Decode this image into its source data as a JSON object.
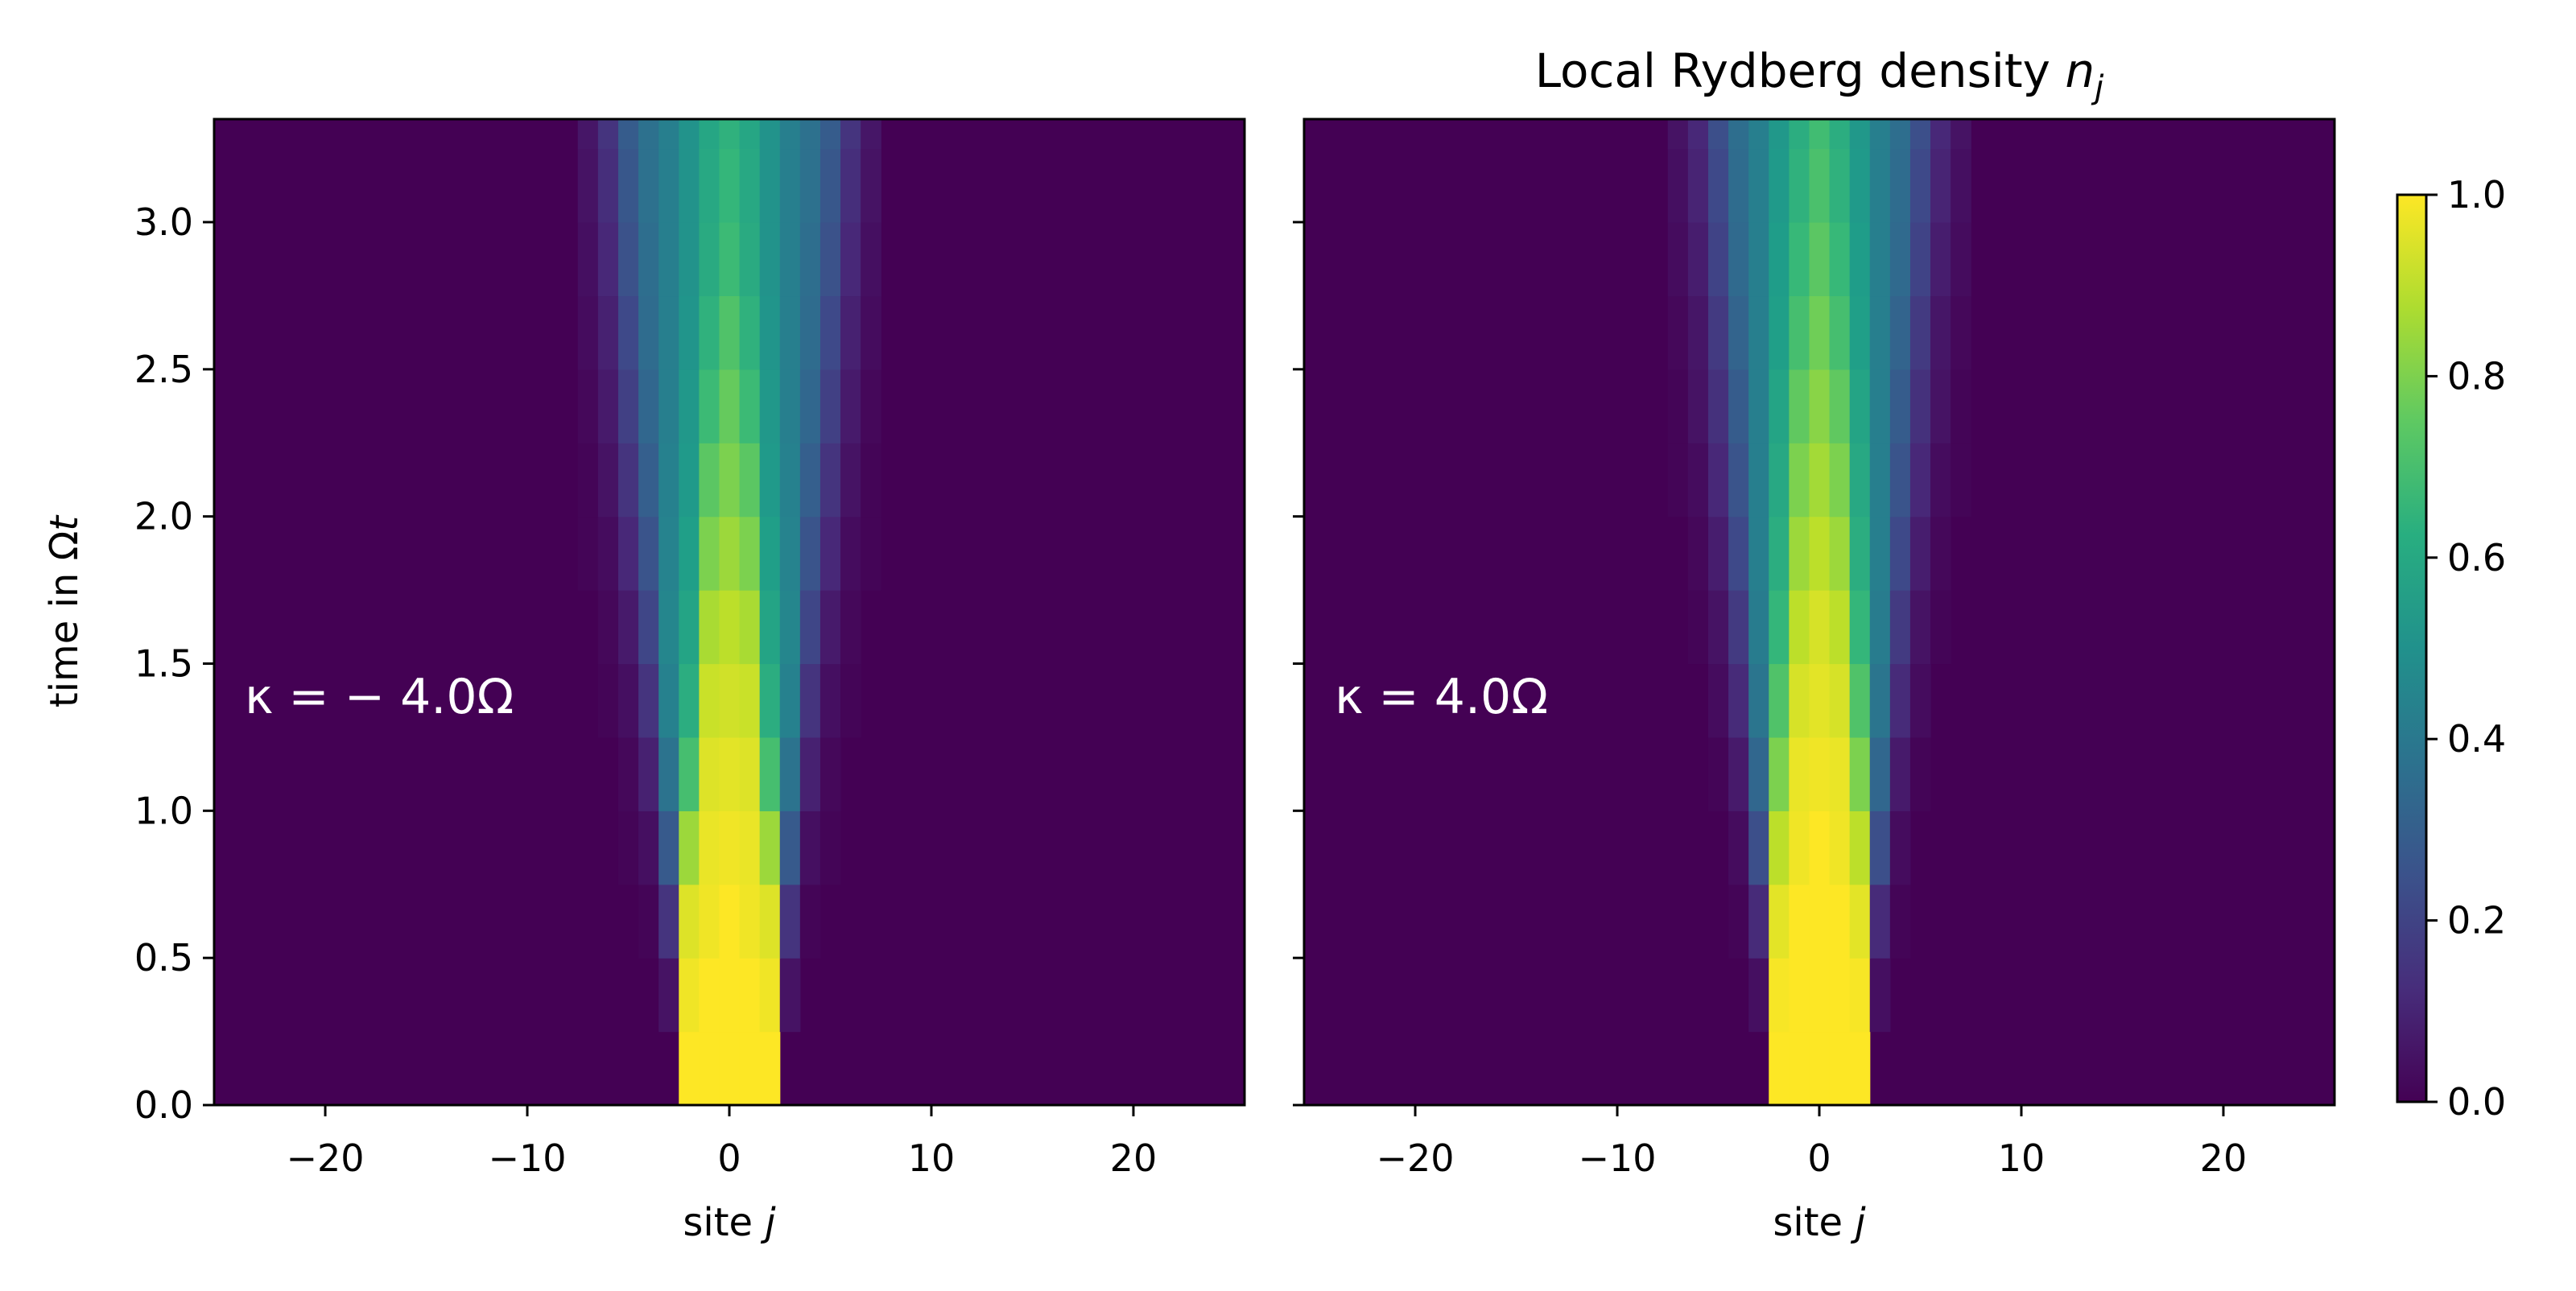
{
  "chart_data": {
    "type": "heatmap",
    "title": "Local Rydberg density n_j",
    "title_parts": {
      "main": "Local Rydberg density ",
      "var": "n",
      "sub": "j"
    },
    "xlabel_parts": {
      "main": "site ",
      "var": "j"
    },
    "ylabel_parts": {
      "main": "time in Ω",
      "var": "t"
    },
    "colormap": "viridis",
    "shared_y_axis": true,
    "xlim": [
      -25.5,
      25.5
    ],
    "ylim": [
      0,
      3.35
    ],
    "clim": [
      0,
      1
    ],
    "x_ticks": [
      -20,
      -10,
      0,
      10,
      20
    ],
    "x_tick_labels": [
      "−20",
      "−10",
      "0",
      "10",
      "20"
    ],
    "y_ticks": [
      0,
      0.5,
      1,
      1.5,
      2,
      2.5,
      3
    ],
    "y_tick_labels": [
      "0.0",
      "0.5",
      "1.0",
      "1.5",
      "2.0",
      "2.5",
      "3.0"
    ],
    "colorbar": {
      "ticks": [
        0,
        0.2,
        0.4,
        0.6,
        0.8,
        1
      ],
      "tick_labels": [
        "0.0",
        "0.2",
        "0.4",
        "0.6",
        "0.8",
        "1.0"
      ]
    },
    "initial_excited_sites": [
      -2,
      -1,
      0,
      1,
      2
    ],
    "sites": [
      -25,
      25
    ],
    "time_samples": [
      0,
      0.25,
      0.5,
      0.75,
      1.0,
      1.25,
      1.5,
      1.75,
      2.0,
      2.25,
      2.5,
      2.75,
      3.0,
      3.25,
      3.35
    ],
    "panels": [
      {
        "annotation": "κ = − 4.0Ω",
        "kappa": -4.0,
        "density_profile": {
          "sites": [
            0,
            1,
            2,
            3,
            4,
            5,
            6,
            7
          ],
          "rows": [
            [
              1.0,
              1.0,
              1.0,
              0.0,
              0.0,
              0.0,
              0.0,
              0.0
            ],
            [
              1.0,
              1.0,
              0.98,
              0.05,
              0.0,
              0.0,
              0.0,
              0.0
            ],
            [
              1.0,
              0.98,
              0.95,
              0.15,
              0.01,
              0.0,
              0.0,
              0.0
            ],
            [
              0.98,
              0.97,
              0.85,
              0.28,
              0.04,
              0.01,
              0.0,
              0.0
            ],
            [
              0.96,
              0.95,
              0.7,
              0.38,
              0.09,
              0.02,
              0.0,
              0.0
            ],
            [
              0.93,
              0.92,
              0.62,
              0.44,
              0.15,
              0.04,
              0.01,
              0.0
            ],
            [
              0.9,
              0.87,
              0.58,
              0.46,
              0.21,
              0.07,
              0.02,
              0.0
            ],
            [
              0.85,
              0.8,
              0.56,
              0.45,
              0.26,
              0.11,
              0.03,
              0.01
            ],
            [
              0.8,
              0.74,
              0.54,
              0.44,
              0.3,
              0.15,
              0.05,
              0.01
            ],
            [
              0.76,
              0.68,
              0.53,
              0.43,
              0.33,
              0.19,
              0.07,
              0.02
            ],
            [
              0.72,
              0.64,
              0.52,
              0.43,
              0.35,
              0.22,
              0.09,
              0.03
            ],
            [
              0.68,
              0.61,
              0.51,
              0.43,
              0.36,
              0.25,
              0.11,
              0.04
            ],
            [
              0.66,
              0.6,
              0.51,
              0.43,
              0.37,
              0.27,
              0.13,
              0.05
            ],
            [
              0.64,
              0.59,
              0.51,
              0.43,
              0.37,
              0.29,
              0.15,
              0.06
            ],
            [
              0.63,
              0.59,
              0.51,
              0.43,
              0.37,
              0.3,
              0.16,
              0.06
            ]
          ]
        }
      },
      {
        "annotation": "κ = 4.0Ω",
        "kappa": 4.0,
        "density_profile": {
          "sites": [
            0,
            1,
            2,
            3,
            4,
            5,
            6,
            7
          ],
          "rows": [
            [
              1.0,
              1.0,
              1.0,
              0.0,
              0.0,
              0.0,
              0.0,
              0.0
            ],
            [
              1.0,
              1.0,
              0.99,
              0.04,
              0.0,
              0.0,
              0.0,
              0.0
            ],
            [
              1.0,
              1.0,
              0.96,
              0.12,
              0.01,
              0.0,
              0.0,
              0.0
            ],
            [
              1.0,
              0.98,
              0.9,
              0.24,
              0.03,
              0.0,
              0.0,
              0.0
            ],
            [
              0.98,
              0.97,
              0.8,
              0.33,
              0.07,
              0.01,
              0.0,
              0.0
            ],
            [
              0.96,
              0.94,
              0.72,
              0.39,
              0.12,
              0.03,
              0.0,
              0.0
            ],
            [
              0.94,
              0.9,
              0.66,
              0.42,
              0.17,
              0.05,
              0.01,
              0.0
            ],
            [
              0.9,
              0.85,
              0.62,
              0.43,
              0.22,
              0.08,
              0.02,
              0.0
            ],
            [
              0.86,
              0.8,
              0.6,
              0.43,
              0.26,
              0.11,
              0.03,
              0.01
            ],
            [
              0.82,
              0.75,
              0.58,
              0.43,
              0.29,
              0.14,
              0.05,
              0.01
            ],
            [
              0.78,
              0.7,
              0.56,
              0.43,
              0.32,
              0.17,
              0.06,
              0.02
            ],
            [
              0.74,
              0.67,
              0.55,
              0.43,
              0.34,
              0.2,
              0.08,
              0.03
            ],
            [
              0.71,
              0.64,
              0.54,
              0.43,
              0.35,
              0.22,
              0.1,
              0.04
            ],
            [
              0.69,
              0.62,
              0.53,
              0.43,
              0.36,
              0.24,
              0.11,
              0.05
            ],
            [
              0.68,
              0.61,
              0.53,
              0.43,
              0.36,
              0.25,
              0.12,
              0.05
            ]
          ]
        }
      }
    ]
  }
}
